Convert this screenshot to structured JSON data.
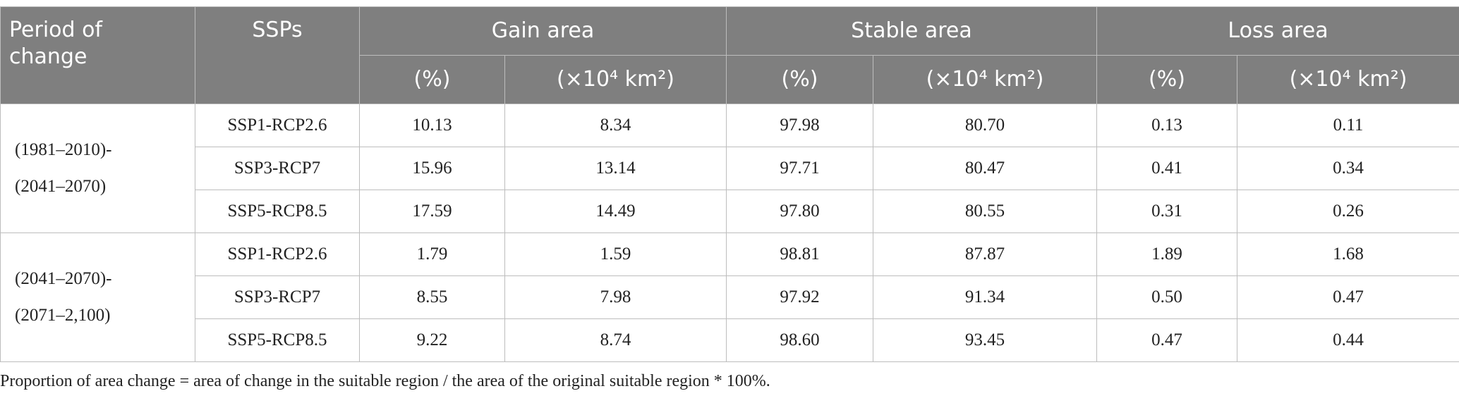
{
  "table": {
    "header": {
      "period": "Period of change",
      "ssps": "SSPs",
      "groups": [
        "Gain area",
        "Stable area",
        "Loss area"
      ],
      "units": [
        "(%)",
        "(×10⁴ km²)",
        "(%)",
        "(×10⁴ km²)",
        "(%)",
        "(×10⁴ km²)"
      ]
    },
    "sections": [
      {
        "period": [
          "(1981–2010)-",
          "(2041–2070)"
        ],
        "rows": [
          [
            "SSP1-RCP2.6",
            "10.13",
            "8.34",
            "97.98",
            "80.70",
            "0.13",
            "0.11"
          ],
          [
            "SSP3-RCP7",
            "15.96",
            "13.14",
            "97.71",
            "80.47",
            "0.41",
            "0.34"
          ],
          [
            "SSP5-RCP8.5",
            "17.59",
            "14.49",
            "97.80",
            "80.55",
            "0.31",
            "0.26"
          ]
        ]
      },
      {
        "period": [
          "(2041–2070)-",
          "(2071–2,100)"
        ],
        "rows": [
          [
            "SSP1-RCP2.6",
            "1.79",
            "1.59",
            "98.81",
            "87.87",
            "1.89",
            "1.68"
          ],
          [
            "SSP3-RCP7",
            "8.55",
            "7.98",
            "97.92",
            "91.34",
            "0.50",
            "0.47"
          ],
          [
            "SSP5-RCP8.5",
            "9.22",
            "8.74",
            "98.60",
            "93.45",
            "0.47",
            "0.44"
          ]
        ]
      }
    ]
  },
  "footnote": "Proportion of area change = area of change in the suitable region / the area of the original suitable region * 100%."
}
